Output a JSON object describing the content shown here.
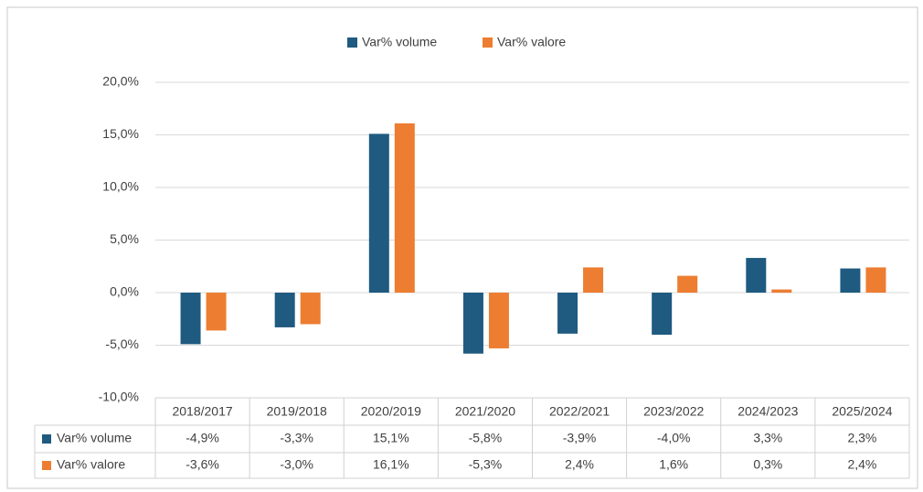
{
  "chart_data": {
    "type": "bar",
    "categories": [
      "2018/2017",
      "2019/2018",
      "2020/2019",
      "2021/2020",
      "2022/2021",
      "2023/2022",
      "2024/2023",
      "2025/2024"
    ],
    "series": [
      {
        "name": "Var% volume",
        "color": "#1f5a80",
        "values": [
          -4.9,
          -3.3,
          15.1,
          -5.8,
          -3.9,
          -4.0,
          3.3,
          2.3
        ],
        "value_labels": [
          "-4,9%",
          "-3,3%",
          "15,1%",
          "-5,8%",
          "-3,9%",
          "-4,0%",
          "3,3%",
          "2,3%"
        ]
      },
      {
        "name": "Var% valore",
        "color": "#ed7d31",
        "values": [
          -3.6,
          -3.0,
          16.1,
          -5.3,
          2.4,
          1.6,
          0.3,
          2.4
        ],
        "value_labels": [
          "-3,6%",
          "-3,0%",
          "16,1%",
          "-5,3%",
          "2,4%",
          "1,6%",
          "0,3%",
          "2,4%"
        ]
      }
    ],
    "ylim": [
      -10,
      20
    ],
    "yticks": [
      {
        "value": -10,
        "label": "-10,0%"
      },
      {
        "value": -5,
        "label": "-5,0%"
      },
      {
        "value": 0,
        "label": "0,0%"
      },
      {
        "value": 5,
        "label": "5,0%"
      },
      {
        "value": 10,
        "label": "10,0%"
      },
      {
        "value": 15,
        "label": "15,0%"
      },
      {
        "value": 20,
        "label": "20,0%"
      }
    ],
    "grid": true,
    "legend": "top"
  }
}
